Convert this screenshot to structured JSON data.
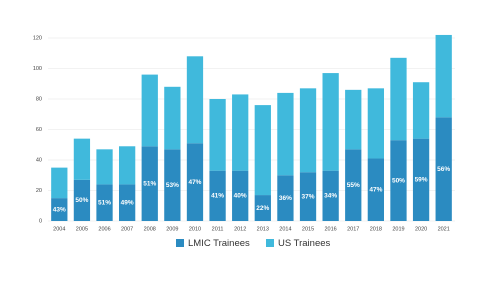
{
  "chart_data": {
    "type": "stacked-bar",
    "categories": [
      "2004",
      "2005",
      "2006",
      "2007",
      "2008",
      "2009",
      "2010",
      "2011",
      "2012",
      "2013",
      "2014",
      "2015",
      "2016",
      "2017",
      "2018",
      "2019",
      "2020",
      "2021"
    ],
    "series": [
      {
        "name": "LMIC Trainees",
        "color": "#2b8bc1",
        "values": [
          15,
          27,
          24,
          24,
          49,
          47,
          51,
          33,
          33,
          17,
          30,
          32,
          33,
          47,
          41,
          53,
          54,
          68
        ]
      },
      {
        "name": "US Trainees",
        "color": "#40b9dc",
        "values": [
          20,
          27,
          23,
          25,
          47,
          41,
          57,
          47,
          50,
          59,
          54,
          55,
          64,
          39,
          46,
          54,
          37,
          54
        ]
      }
    ],
    "annotations": [
      "43%",
      "50%",
      "51%",
      "49%",
      "51%",
      "53%",
      "47%",
      "41%",
      "40%",
      "22%",
      "36%",
      "37%",
      "34%",
      "55%",
      "47%",
      "50%",
      "59%",
      "56%"
    ],
    "ylim": [
      0,
      120
    ],
    "yticks": [
      0,
      20,
      40,
      60,
      80,
      100,
      120
    ],
    "grid": true,
    "legend": "bottom"
  }
}
